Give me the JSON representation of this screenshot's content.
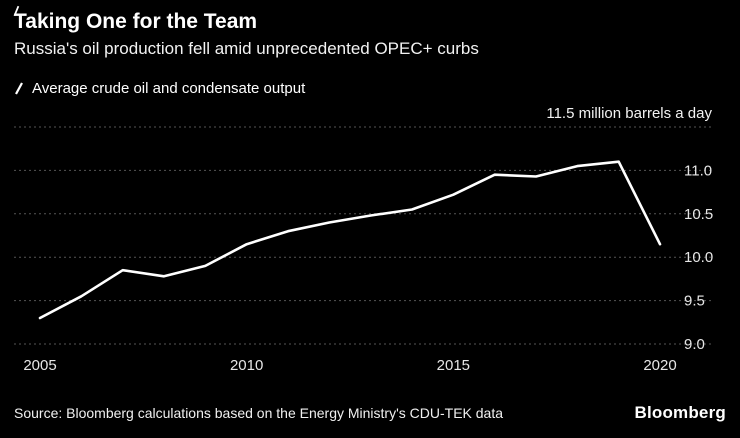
{
  "chart": {
    "title": "Taking One for the Team",
    "subtitle": "Russia's oil production fell amid unprecedented OPEC+ curbs",
    "legend_label": "Average crude oil and condensate output",
    "unit_label": "11.5 million barrels a day",
    "source": "Source: Bloomberg calculations based on the Energy Ministry's CDU-TEK data",
    "brand": "Bloomberg",
    "line_color": "#ffffff",
    "background_color": "#000000",
    "grid_color": "#565656"
  },
  "chart_data": {
    "type": "line",
    "title": "Taking One for the Team",
    "subtitle": "Russia's oil production fell amid unprecedented OPEC+ curbs",
    "ylabel": "million barrels a day",
    "xlabel": "",
    "x": [
      2005,
      2006,
      2007,
      2008,
      2009,
      2010,
      2011,
      2012,
      2013,
      2014,
      2015,
      2016,
      2017,
      2018,
      2019,
      2020
    ],
    "series": [
      {
        "name": "Average crude oil and condensate output",
        "values": [
          9.3,
          9.55,
          9.85,
          9.78,
          9.9,
          10.15,
          10.3,
          10.4,
          10.48,
          10.55,
          10.72,
          10.95,
          10.93,
          11.05,
          11.1,
          10.15
        ]
      }
    ],
    "ylim": [
      9.0,
      11.5
    ],
    "yticks": [
      9.0,
      9.5,
      10.0,
      10.5,
      11.0,
      11.5
    ],
    "ytick_labels_right": [
      "9.0",
      "9.5",
      "10.0",
      "10.5",
      "11.0"
    ],
    "xticks": [
      2005,
      2010,
      2015,
      2020
    ],
    "grid": true,
    "legend_position": "top-left"
  }
}
